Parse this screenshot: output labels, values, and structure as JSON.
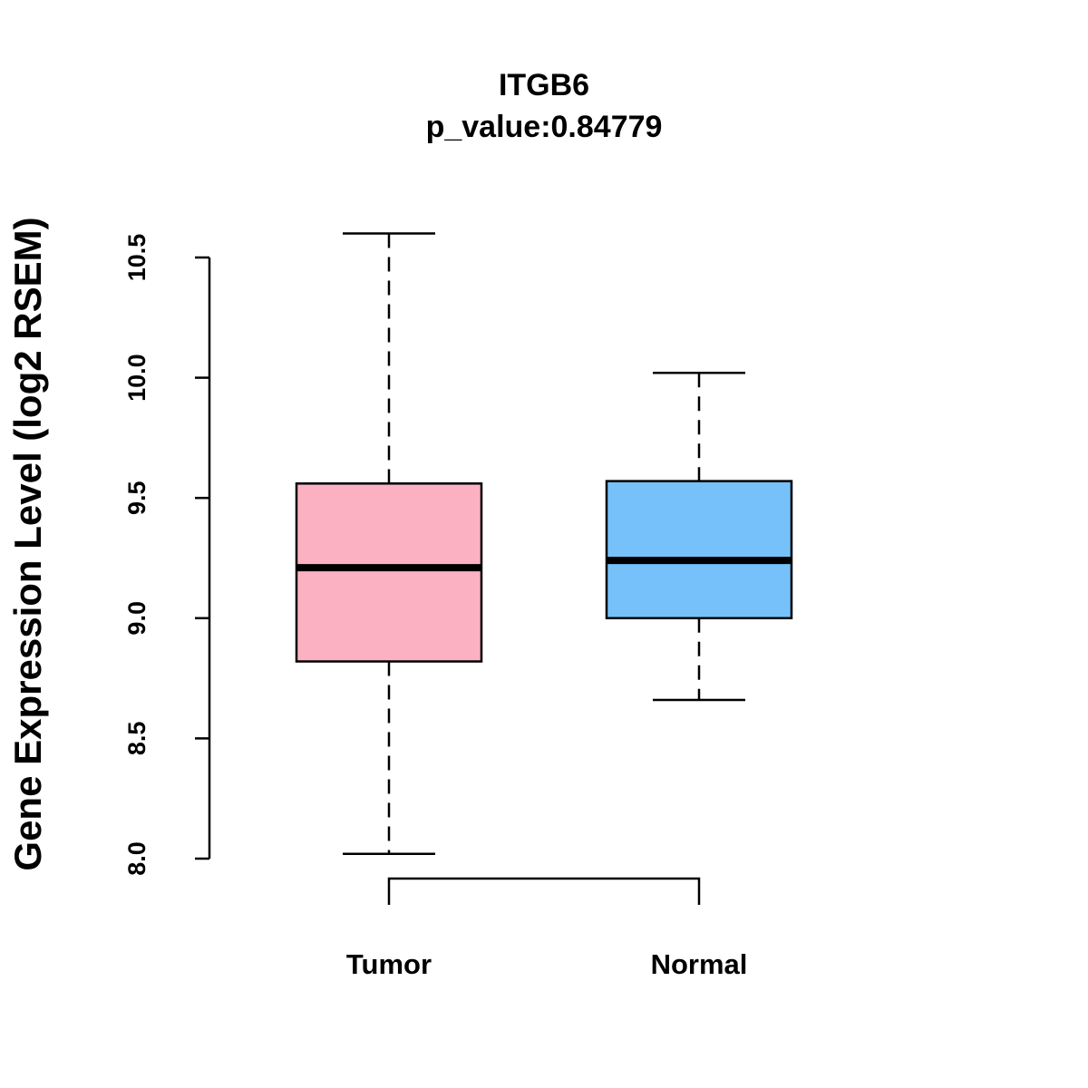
{
  "chart_data": {
    "type": "boxplot",
    "title": "ITGB6",
    "subtitle": "p_value:0.84779",
    "xlabel": "",
    "ylabel": "Gene Expression Level (log2 RSEM)",
    "ylim": [
      8.0,
      10.5
    ],
    "yticks": [
      "8.0",
      "8.5",
      "9.0",
      "9.5",
      "10.0",
      "10.5"
    ],
    "grid": false,
    "categories": [
      "Tumor",
      "Normal"
    ],
    "series": [
      {
        "name": "Tumor",
        "min": 8.02,
        "q1": 8.82,
        "median": 9.21,
        "q3": 9.56,
        "max": 10.6,
        "color": "#FCB1C3"
      },
      {
        "name": "Normal",
        "min": 8.66,
        "q1": 9.0,
        "median": 9.24,
        "q3": 9.57,
        "max": 10.02,
        "color": "#76C1F9"
      }
    ]
  }
}
